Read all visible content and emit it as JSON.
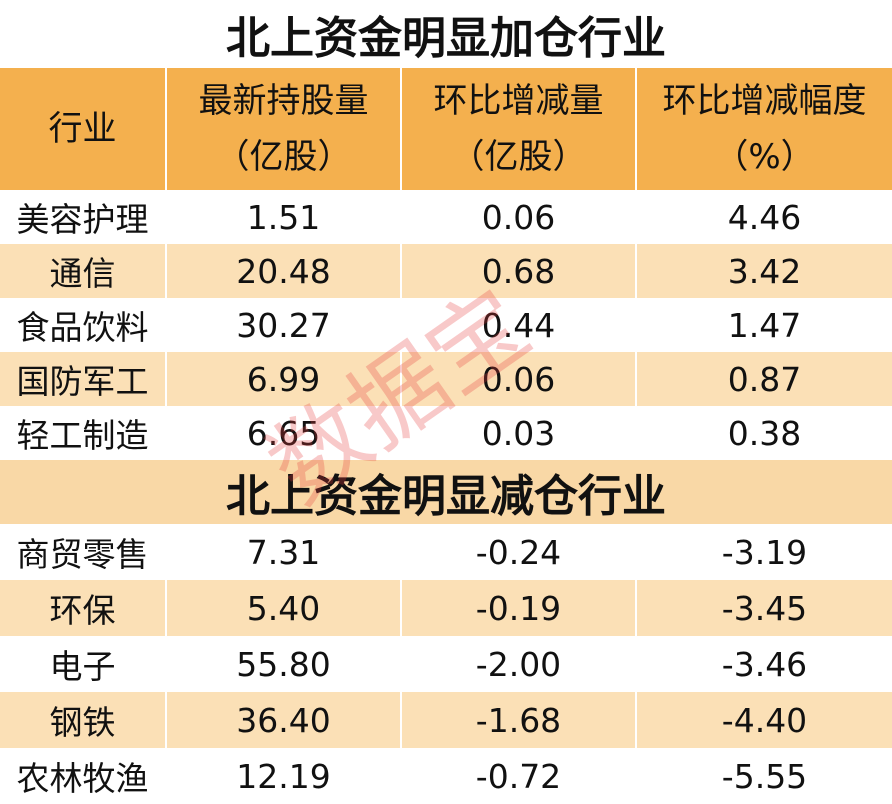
{
  "header": {
    "columns": [
      [
        "行业"
      ],
      [
        "最新持股量",
        "（亿股）"
      ],
      [
        "环比增减量",
        "（亿股）"
      ],
      [
        "环比增减幅度",
        "（%）"
      ]
    ]
  },
  "sections": [
    {
      "title": "北上资金明显加仓行业",
      "rows": [
        [
          "美容护理",
          "1.51",
          "0.06",
          "4.46"
        ],
        [
          "通信",
          "20.48",
          "0.68",
          "3.42"
        ],
        [
          "食品饮料",
          "30.27",
          "0.44",
          "1.47"
        ],
        [
          "国防军工",
          "6.99",
          "0.06",
          "0.87"
        ],
        [
          "轻工制造",
          "6.65",
          "0.03",
          "0.38"
        ]
      ]
    },
    {
      "title": "北上资金明显减仓行业",
      "rows": [
        [
          "商贸零售",
          "7.31",
          "-0.24",
          "-3.19"
        ],
        [
          "环保",
          "5.40",
          "-0.19",
          "-3.45"
        ],
        [
          "电子",
          "55.80",
          "-2.00",
          "-3.46"
        ],
        [
          "钢铁",
          "36.40",
          "-1.68",
          "-4.40"
        ],
        [
          "农林牧渔",
          "12.19",
          "-0.72",
          "-5.55"
        ]
      ]
    }
  ],
  "watermark": "数据宝"
}
